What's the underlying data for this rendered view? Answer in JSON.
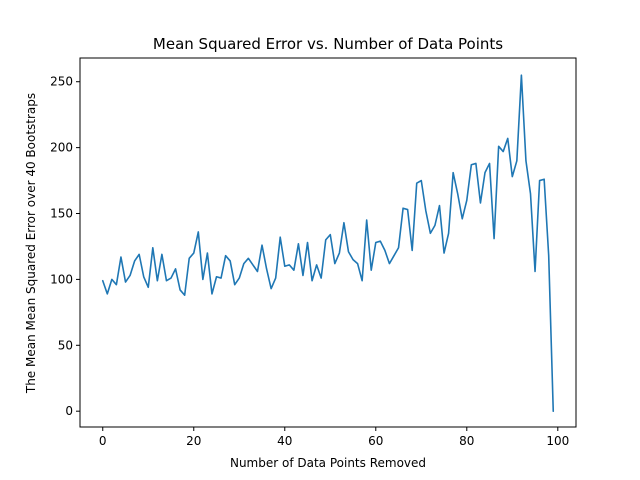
{
  "chart_data": {
    "type": "line",
    "title": "Mean Squared Error vs. Number of Data Points",
    "xlabel": "Number of Data Points Removed",
    "ylabel": "The Mean Mean Squared Error over 40 Bootstraps",
    "xlim": [
      -5,
      104
    ],
    "ylim": [
      -12,
      268
    ],
    "xticks": [
      0,
      20,
      40,
      60,
      80,
      100
    ],
    "yticks": [
      0,
      50,
      100,
      150,
      200,
      250
    ],
    "grid": false,
    "legend": "none",
    "series": [
      {
        "color": "#1f77b4",
        "x": [
          0,
          1,
          2,
          3,
          4,
          5,
          6,
          7,
          8,
          9,
          10,
          11,
          12,
          13,
          14,
          15,
          16,
          17,
          18,
          19,
          20,
          21,
          22,
          23,
          24,
          25,
          26,
          27,
          28,
          29,
          30,
          31,
          32,
          33,
          34,
          35,
          36,
          37,
          38,
          39,
          40,
          41,
          42,
          43,
          44,
          45,
          46,
          47,
          48,
          49,
          50,
          51,
          52,
          53,
          54,
          55,
          56,
          57,
          58,
          59,
          60,
          61,
          62,
          63,
          64,
          65,
          66,
          67,
          68,
          69,
          70,
          71,
          72,
          73,
          74,
          75,
          76,
          77,
          78,
          79,
          80,
          81,
          82,
          83,
          84,
          85,
          86,
          87,
          88,
          89,
          90,
          91,
          92,
          93,
          94,
          95,
          96,
          97,
          98,
          99
        ],
        "values": [
          99,
          89,
          100,
          96,
          117,
          98,
          103,
          114,
          119,
          102,
          94,
          124,
          99,
          119,
          99,
          101,
          108,
          92,
          88,
          116,
          120,
          136,
          100,
          120,
          89,
          102,
          101,
          118,
          114,
          96,
          101,
          112,
          116,
          111,
          106,
          126,
          108,
          93,
          101,
          132,
          110,
          111,
          107,
          127,
          103,
          128,
          99,
          111,
          101,
          130,
          134,
          112,
          120,
          143,
          121,
          115,
          112,
          99,
          145,
          107,
          128,
          129,
          122,
          112,
          118,
          124,
          154,
          153,
          122,
          173,
          175,
          152,
          135,
          141,
          156,
          120,
          135,
          181,
          165,
          146,
          160,
          187,
          188,
          158,
          181,
          188,
          131,
          201,
          197,
          207,
          178,
          190,
          255,
          190,
          165,
          106,
          175,
          176,
          118,
          0
        ]
      }
    ]
  }
}
